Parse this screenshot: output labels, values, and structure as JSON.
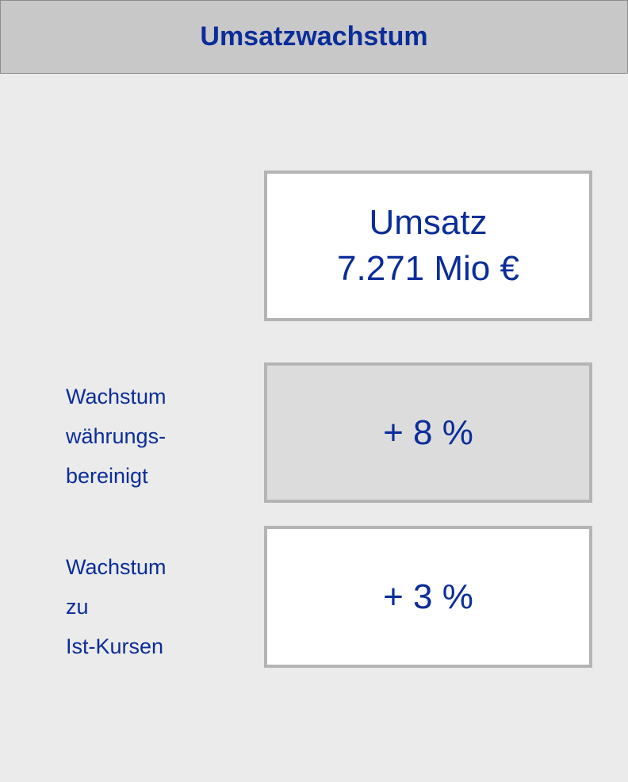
{
  "header": {
    "title": "Umsatzwachstum"
  },
  "revenue_box": {
    "lines": [
      "Umsatz",
      "7.271 Mio €"
    ]
  },
  "rows": [
    {
      "label_lines": [
        "Wachstum",
        "währungs-",
        "bereinigt"
      ],
      "value": "+ 8 %"
    },
    {
      "label_lines": [
        "Wachstum",
        "zu",
        "Ist-Kursen"
      ],
      "value": "+ 3 %"
    }
  ]
}
